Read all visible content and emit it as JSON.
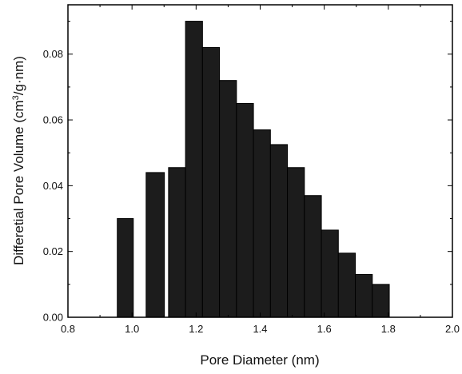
{
  "chart_data": {
    "type": "bar",
    "xlabel": "Pore Diameter (nm)",
    "ylabel_prefix": "Differetial Pore Volume (cm",
    "ylabel_sup": "3",
    "ylabel_suffix": "/g·nm)",
    "xlim": [
      0.8,
      2.0
    ],
    "ylim": [
      0.0,
      0.095
    ],
    "xticks": [
      "0.8",
      "1.0",
      "1.2",
      "1.4",
      "1.6",
      "1.8",
      "2.0"
    ],
    "xtick_values": [
      0.8,
      1.0,
      1.2,
      1.4,
      1.6,
      1.8,
      2.0
    ],
    "yticks": [
      "0.00",
      "0.02",
      "0.04",
      "0.06",
      "0.08"
    ],
    "ytick_values": [
      0.0,
      0.02,
      0.04,
      0.06,
      0.08
    ],
    "grid": false,
    "bars": [
      {
        "x_start": 0.954,
        "x_end": 1.004,
        "value": 0.03
      },
      {
        "x_start": 1.044,
        "x_end": 1.101,
        "value": 0.044
      },
      {
        "x_start": 1.114,
        "x_end": 1.167,
        "value": 0.0455
      },
      {
        "x_start": 1.167,
        "x_end": 1.22,
        "value": 0.09
      },
      {
        "x_start": 1.22,
        "x_end": 1.273,
        "value": 0.082
      },
      {
        "x_start": 1.273,
        "x_end": 1.326,
        "value": 0.072
      },
      {
        "x_start": 1.326,
        "x_end": 1.379,
        "value": 0.065
      },
      {
        "x_start": 1.379,
        "x_end": 1.432,
        "value": 0.057
      },
      {
        "x_start": 1.432,
        "x_end": 1.485,
        "value": 0.0525
      },
      {
        "x_start": 1.485,
        "x_end": 1.538,
        "value": 0.0455
      },
      {
        "x_start": 1.538,
        "x_end": 1.591,
        "value": 0.037
      },
      {
        "x_start": 1.591,
        "x_end": 1.644,
        "value": 0.0265
      },
      {
        "x_start": 1.644,
        "x_end": 1.697,
        "value": 0.0195
      },
      {
        "x_start": 1.697,
        "x_end": 1.75,
        "value": 0.013
      },
      {
        "x_start": 1.75,
        "x_end": 1.803,
        "value": 0.01
      }
    ]
  }
}
